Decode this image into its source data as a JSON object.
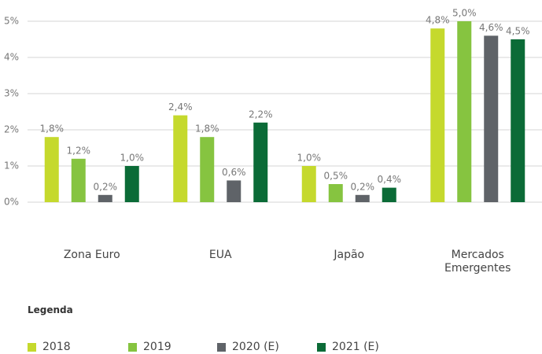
{
  "chart_data": {
    "type": "bar",
    "legend_title": "Legenda",
    "categories": [
      "Zona Euro",
      "EUA",
      "Japão",
      "Mercados Emergentes"
    ],
    "series": [
      {
        "name": "2018",
        "color": "#c5d92d",
        "values": [
          1.8,
          2.4,
          1.0,
          4.8
        ],
        "value_labels": [
          "1,8%",
          "2,4%",
          "1,0%",
          "4,8%"
        ]
      },
      {
        "name": "2019",
        "color": "#86c440",
        "values": [
          1.2,
          1.8,
          0.5,
          5.0
        ],
        "value_labels": [
          "1,2%",
          "1,8%",
          "0,5%",
          "5,0%"
        ]
      },
      {
        "name": "2020 (E)",
        "color": "#5f6368",
        "values": [
          0.2,
          0.6,
          0.2,
          4.6
        ],
        "value_labels": [
          "0,2%",
          "0,6%",
          "0,2%",
          "4,6%"
        ]
      },
      {
        "name": "2021 (E)",
        "color": "#0b6b37",
        "values": [
          1.0,
          2.2,
          0.4,
          4.5
        ],
        "value_labels": [
          "1,0%",
          "2,2%",
          "0,4%",
          "4,5%"
        ]
      }
    ],
    "ylim": [
      0,
      5
    ],
    "yticks": [
      {
        "value": 0,
        "label": "0%"
      },
      {
        "value": 1,
        "label": "1%"
      },
      {
        "value": 2,
        "label": "2%"
      },
      {
        "value": 3,
        "label": "3%"
      },
      {
        "value": 4,
        "label": "4%"
      },
      {
        "value": 5,
        "label": "5%"
      }
    ],
    "grid": true
  }
}
